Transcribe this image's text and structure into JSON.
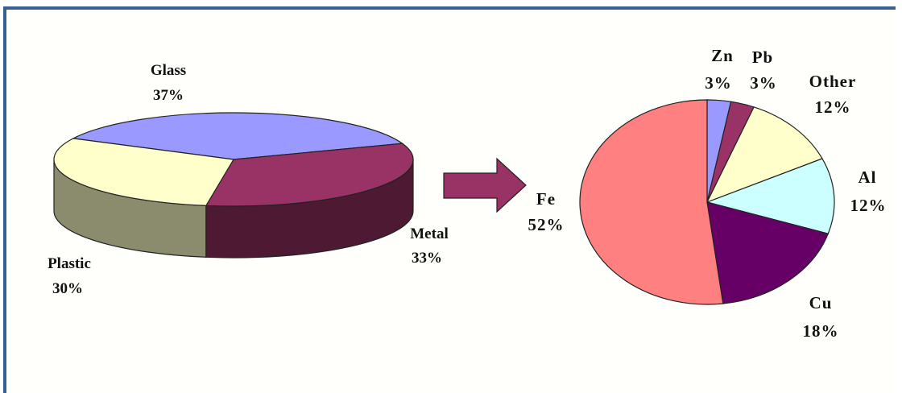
{
  "chart_data": [
    {
      "type": "pie",
      "style": "3d",
      "slices": [
        {
          "name": "Glass",
          "value": 37,
          "label": "37%",
          "color": "#9999ff"
        },
        {
          "name": "Metal",
          "value": 33,
          "label": "33%",
          "color": "#993366"
        },
        {
          "name": "Plastic",
          "value": 30,
          "label": "30%",
          "color": "#ffffcc"
        }
      ],
      "side_colors": {
        "Metal": "#4d1933",
        "Plastic": "#8b8b6e"
      }
    },
    {
      "type": "pie",
      "slices": [
        {
          "name": "Zn",
          "value": 3,
          "label": "3%",
          "color": "#9999ff"
        },
        {
          "name": "Pb",
          "value": 3,
          "label": "3%",
          "color": "#993366"
        },
        {
          "name": "Other",
          "value": 12,
          "label": "12%",
          "color": "#ffffcc"
        },
        {
          "name": "Al",
          "value": 12,
          "label": "12%",
          "color": "#ccffff"
        },
        {
          "name": "Cu",
          "value": 18,
          "label": "18%",
          "color": "#660066"
        },
        {
          "name": "Fe",
          "value": 52,
          "label": "52%",
          "color": "#ff8080"
        }
      ]
    }
  ],
  "arrow_color": "#993366",
  "frame_color": "#3a5f93"
}
